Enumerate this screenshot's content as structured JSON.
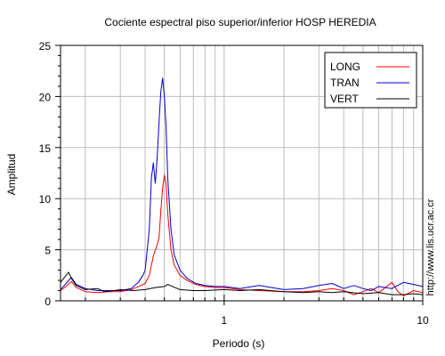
{
  "chart_data": {
    "type": "line",
    "title": "Cociente espectral piso superior/inferior  HOSP HEREDIA",
    "xlabel": "Periodo (s)",
    "ylabel": "Amplitud",
    "xscale": "log",
    "xlim": [
      0.15,
      10
    ],
    "ylim": [
      0,
      25
    ],
    "xticks": [
      1,
      10
    ],
    "xtick_labels": [
      "1",
      "10"
    ],
    "yticks": [
      0,
      5,
      10,
      15,
      20,
      25
    ],
    "ytick_labels": [
      "0",
      "5",
      "10",
      "15",
      "20",
      "25"
    ],
    "grid": true,
    "legend_position": "top-right",
    "side_note": "http://www.lis.ucr.ac.cr",
    "series": [
      {
        "name": "LONG",
        "color": "#ff0000",
        "points": [
          [
            0.15,
            1.0
          ],
          [
            0.16,
            1.4
          ],
          [
            0.17,
            1.9
          ],
          [
            0.18,
            1.3
          ],
          [
            0.2,
            0.9
          ],
          [
            0.23,
            0.8
          ],
          [
            0.26,
            0.9
          ],
          [
            0.3,
            0.9
          ],
          [
            0.34,
            1.1
          ],
          [
            0.38,
            1.5
          ],
          [
            0.4,
            1.7
          ],
          [
            0.42,
            2.5
          ],
          [
            0.44,
            4.4
          ],
          [
            0.46,
            5.5
          ],
          [
            0.47,
            6.2
          ],
          [
            0.48,
            8.8
          ],
          [
            0.49,
            11.0
          ],
          [
            0.5,
            12.3
          ],
          [
            0.51,
            11.5
          ],
          [
            0.52,
            8.5
          ],
          [
            0.54,
            5.0
          ],
          [
            0.56,
            3.5
          ],
          [
            0.6,
            2.5
          ],
          [
            0.65,
            2.0
          ],
          [
            0.72,
            1.6
          ],
          [
            0.8,
            1.4
          ],
          [
            0.9,
            1.3
          ],
          [
            1.0,
            1.3
          ],
          [
            1.2,
            1.1
          ],
          [
            1.5,
            1.0
          ],
          [
            2.0,
            0.9
          ],
          [
            2.5,
            0.9
          ],
          [
            3.0,
            1.0
          ],
          [
            3.5,
            1.2
          ],
          [
            4.0,
            1.0
          ],
          [
            4.5,
            0.6
          ],
          [
            5.0,
            0.9
          ],
          [
            5.5,
            1.2
          ],
          [
            6.0,
            0.8
          ],
          [
            7.0,
            1.8
          ],
          [
            7.5,
            0.9
          ],
          [
            8.0,
            0.5
          ],
          [
            9.0,
            1.0
          ],
          [
            10.0,
            0.8
          ]
        ]
      },
      {
        "name": "TRAN",
        "color": "#0000cc",
        "points": [
          [
            0.15,
            1.1
          ],
          [
            0.16,
            1.7
          ],
          [
            0.17,
            2.3
          ],
          [
            0.18,
            1.6
          ],
          [
            0.2,
            1.2
          ],
          [
            0.23,
            1.0
          ],
          [
            0.26,
            1.0
          ],
          [
            0.3,
            1.0
          ],
          [
            0.34,
            1.2
          ],
          [
            0.37,
            1.8
          ],
          [
            0.39,
            2.5
          ],
          [
            0.4,
            3.0
          ],
          [
            0.42,
            7.0
          ],
          [
            0.43,
            12.0
          ],
          [
            0.44,
            13.5
          ],
          [
            0.45,
            11.5
          ],
          [
            0.46,
            14.0
          ],
          [
            0.47,
            17.5
          ],
          [
            0.48,
            20.5
          ],
          [
            0.49,
            21.8
          ],
          [
            0.5,
            20.0
          ],
          [
            0.51,
            17.0
          ],
          [
            0.52,
            12.0
          ],
          [
            0.54,
            7.0
          ],
          [
            0.56,
            4.5
          ],
          [
            0.6,
            3.0
          ],
          [
            0.65,
            2.2
          ],
          [
            0.72,
            1.7
          ],
          [
            0.8,
            1.5
          ],
          [
            0.9,
            1.4
          ],
          [
            1.0,
            1.4
          ],
          [
            1.2,
            1.2
          ],
          [
            1.5,
            1.5
          ],
          [
            2.0,
            1.1
          ],
          [
            2.5,
            1.2
          ],
          [
            3.0,
            1.5
          ],
          [
            3.5,
            1.7
          ],
          [
            4.0,
            1.2
          ],
          [
            4.5,
            1.5
          ],
          [
            5.0,
            1.2
          ],
          [
            5.5,
            1.0
          ],
          [
            6.0,
            1.4
          ],
          [
            7.0,
            1.2
          ],
          [
            8.0,
            1.8
          ],
          [
            9.0,
            1.6
          ],
          [
            10.0,
            1.4
          ]
        ]
      },
      {
        "name": "VERT",
        "color": "#000000",
        "points": [
          [
            0.15,
            1.8
          ],
          [
            0.16,
            2.5
          ],
          [
            0.165,
            2.8
          ],
          [
            0.17,
            2.2
          ],
          [
            0.18,
            1.5
          ],
          [
            0.2,
            1.1
          ],
          [
            0.23,
            1.2
          ],
          [
            0.25,
            0.9
          ],
          [
            0.28,
            1.0
          ],
          [
            0.3,
            1.1
          ],
          [
            0.35,
            1.0
          ],
          [
            0.4,
            1.1
          ],
          [
            0.45,
            1.3
          ],
          [
            0.5,
            1.4
          ],
          [
            0.52,
            1.6
          ],
          [
            0.55,
            1.4
          ],
          [
            0.6,
            1.1
          ],
          [
            0.7,
            1.0
          ],
          [
            0.8,
            1.0
          ],
          [
            1.0,
            1.1
          ],
          [
            1.2,
            1.0
          ],
          [
            1.5,
            1.1
          ],
          [
            2.0,
            0.9
          ],
          [
            2.5,
            0.8
          ],
          [
            3.0,
            0.9
          ],
          [
            3.5,
            0.8
          ],
          [
            4.0,
            0.9
          ],
          [
            5.0,
            0.7
          ],
          [
            6.0,
            0.8
          ],
          [
            7.0,
            0.6
          ],
          [
            8.0,
            0.6
          ],
          [
            9.0,
            0.7
          ],
          [
            10.0,
            0.6
          ]
        ]
      }
    ]
  }
}
